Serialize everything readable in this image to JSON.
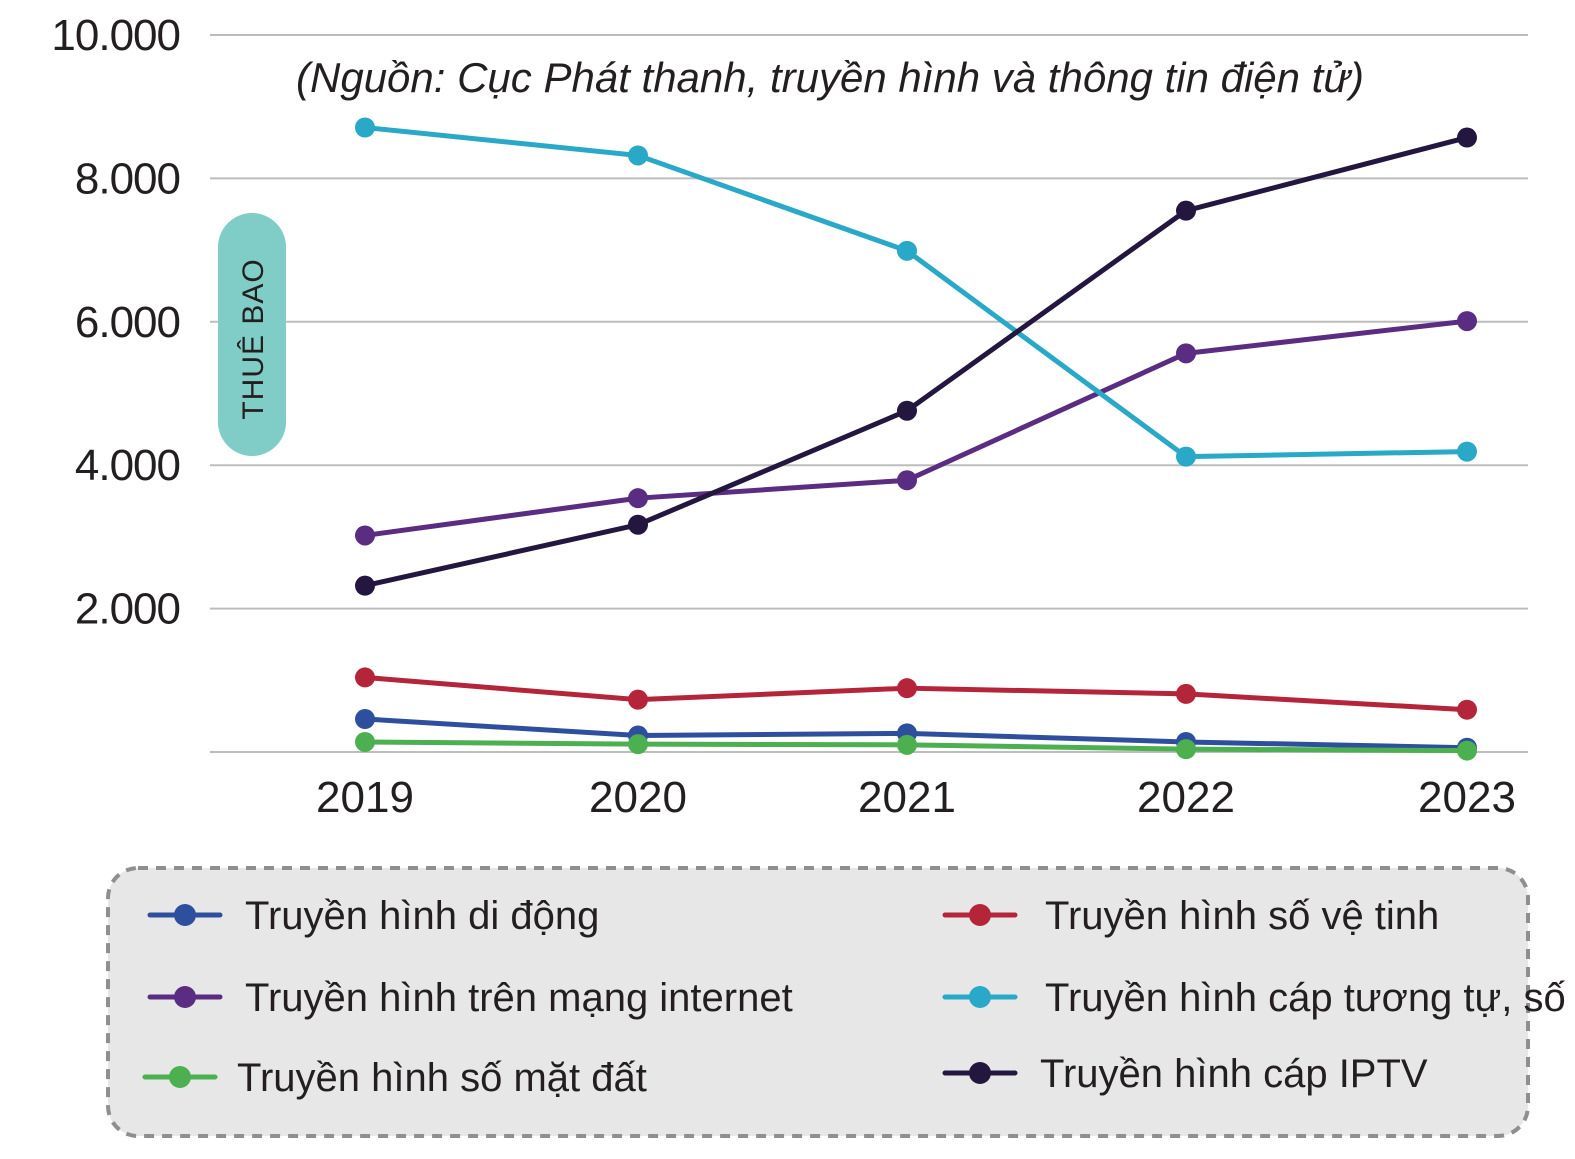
{
  "chart_data": {
    "type": "line",
    "source": "(Nguồn: Cục Phát thanh, truyền hình và thông tin điện tử)",
    "ylabel": "THUÊ BAO",
    "xlabel": "",
    "categories": [
      "2019",
      "2020",
      "2021",
      "2022",
      "2023"
    ],
    "ylim": [
      0,
      10000
    ],
    "yticks": [
      {
        "value": 2000,
        "label": "2.000"
      },
      {
        "value": 4000,
        "label": "4.000"
      },
      {
        "value": 6000,
        "label": "6.000"
      },
      {
        "value": 8000,
        "label": "8.000"
      },
      {
        "value": 10000,
        "label": "10.000"
      }
    ],
    "grid": true,
    "legend_position": "bottom",
    "series": [
      {
        "name": "Truyền hình di động",
        "color": "#2e4f9e",
        "values": [
          460,
          230,
          260,
          140,
          60
        ]
      },
      {
        "name": "Truyền hình trên mạng internet",
        "color": "#5a2d82",
        "values": [
          3020,
          3540,
          3790,
          5560,
          6010
        ]
      },
      {
        "name": "Truyền hình số mặt đất",
        "color": "#4caf50",
        "values": [
          140,
          110,
          100,
          40,
          20
        ]
      },
      {
        "name": "Truyền hình số vệ tinh",
        "color": "#b5253a",
        "values": [
          1040,
          730,
          890,
          810,
          590
        ]
      },
      {
        "name": "Truyền hình cáp tương tự, số",
        "color": "#29a8c8",
        "values": [
          8710,
          8320,
          6990,
          4120,
          4190
        ]
      },
      {
        "name": "Truyền hình cáp IPTV",
        "color": "#24173f",
        "values": [
          2320,
          3170,
          4760,
          7550,
          8570
        ]
      }
    ]
  },
  "colors": {
    "grid": "#bdbdbd",
    "ylabel_pill": "#7fcdc6",
    "legend_bg": "#e7e7e7",
    "legend_border": "#8f8f8f"
  }
}
